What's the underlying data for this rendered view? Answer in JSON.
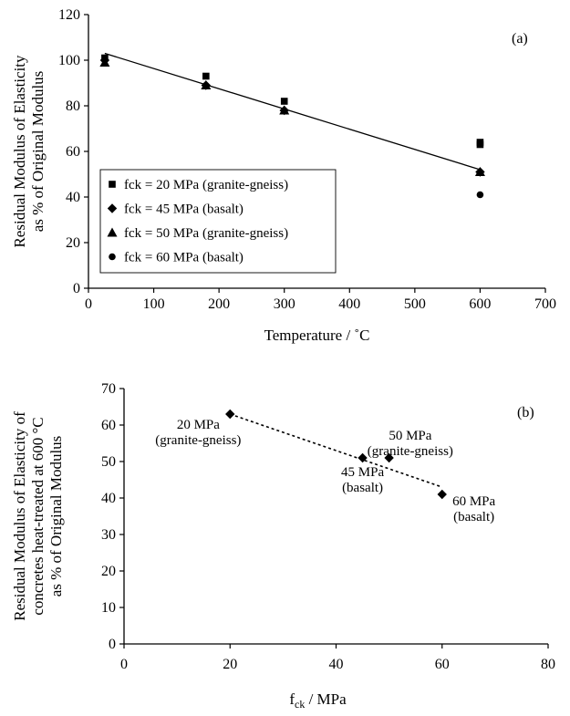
{
  "chart_data": [
    {
      "type": "scatter",
      "panel_label": "(a)",
      "xlabel": "Temperature / ˚C",
      "ylabel_lines": [
        "Residual Modulus of Elasticity",
        "as % of Original Modulus"
      ],
      "xlim": [
        0,
        700
      ],
      "ylim": [
        0,
        120
      ],
      "xticks": [
        0,
        100,
        200,
        300,
        400,
        500,
        600,
        700
      ],
      "yticks": [
        0,
        20,
        40,
        60,
        80,
        100,
        120
      ],
      "grid": false,
      "legend_position": "bottom-left",
      "series": [
        {
          "name": "fck = 20 MPa (granite-gneiss)",
          "marker": "square",
          "points": [
            [
              25,
              101
            ],
            [
              180,
              93
            ],
            [
              300,
              82
            ],
            [
              600,
              64
            ],
            [
              600,
              63
            ]
          ]
        },
        {
          "name": "fck = 45 MPa (basalt)",
          "marker": "diamond",
          "points": [
            [
              25,
              100
            ],
            [
              180,
              89
            ],
            [
              300,
              78
            ],
            [
              600,
              51
            ]
          ]
        },
        {
          "name": "fck = 50 MPa (granite-gneiss)",
          "marker": "triangle",
          "points": [
            [
              25,
              99
            ],
            [
              180,
              89
            ],
            [
              300,
              78
            ],
            [
              600,
              51
            ]
          ]
        },
        {
          "name": "fck = 60 MPa (basalt)",
          "marker": "circle",
          "points": [
            [
              25,
              100
            ],
            [
              600,
              41
            ]
          ]
        }
      ],
      "trendline": {
        "style": "solid",
        "x": [
          25,
          600
        ],
        "y": [
          103,
          52
        ]
      }
    },
    {
      "type": "scatter",
      "panel_label": "(b)",
      "xlabel_main": "f",
      "xlabel_sub": "ck",
      "xlabel_rest": " / MPa",
      "ylabel_lines": [
        "Residual Modulus of Elasticity of",
        "concretes heat-treated at 600 °C",
        "as % of Original Modulus"
      ],
      "xlim": [
        0,
        80
      ],
      "ylim": [
        0,
        70
      ],
      "xticks": [
        0,
        20,
        40,
        60,
        80
      ],
      "yticks": [
        0,
        10,
        20,
        30,
        40,
        50,
        60,
        70
      ],
      "grid": false,
      "points": [
        [
          20,
          63
        ],
        [
          45,
          51
        ],
        [
          50,
          51
        ],
        [
          60,
          41
        ]
      ],
      "annotations": [
        {
          "lines": [
            "20 MPa",
            "(granite-gneiss)"
          ],
          "x": 14,
          "y": 59
        },
        {
          "lines": [
            "45 MPa",
            "(basalt)"
          ],
          "x": 45,
          "y": 46
        },
        {
          "lines": [
            "50 MPa",
            "(granite-gneiss)"
          ],
          "x": 54,
          "y": 56
        },
        {
          "lines": [
            "60 MPa",
            "(basalt)"
          ],
          "x": 66,
          "y": 38
        }
      ],
      "trendline": {
        "style": "dotted",
        "x": [
          20,
          60
        ],
        "y": [
          63,
          43
        ]
      }
    }
  ]
}
